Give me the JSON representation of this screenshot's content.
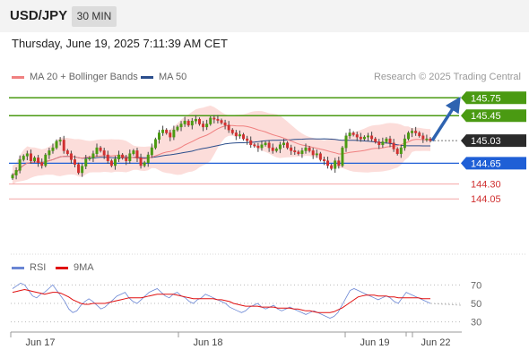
{
  "header": {
    "pair": "USD/JPY",
    "timeframe": "30 MIN",
    "datetime": "Thursday, June 19, 2025 7:11:39 AM CET"
  },
  "legend": {
    "ma20_label": "MA 20 + Bollinger Bands",
    "ma50_label": "MA 50",
    "credit": "Research © 2025 Trading Central"
  },
  "colors": {
    "ma20": "#f08080",
    "ma50": "#2b4e8c",
    "band": "#fcd9d6",
    "resistance": "#4a9a12",
    "support": "#1f5fd6",
    "minor_support": "#f4a6a6",
    "up": "#4a9a12",
    "down": "#d03030",
    "rsi": "#6a86d4",
    "rsi_ma": "#e01010",
    "arrow": "#2e63b0"
  },
  "rsi_legend": {
    "rsi_label": "RSI",
    "ma_label": "9MA"
  },
  "chart_data": [
    {
      "type": "candlestick",
      "x_labels": [
        "Jun 17",
        "Jun 18",
        "Jun 19",
        "Jun 22"
      ],
      "ylim": [
        143.15,
        145.95
      ],
      "levels": [
        {
          "value": 145.75,
          "label": "145.75",
          "kind": "resistance"
        },
        {
          "value": 145.45,
          "label": "145.45",
          "kind": "resistance"
        },
        {
          "value": 145.03,
          "label": "145.03",
          "kind": "current"
        },
        {
          "value": 144.65,
          "label": "144.65",
          "kind": "support"
        },
        {
          "value": 144.3,
          "label": "144.30",
          "kind": "minor_support"
        },
        {
          "value": 144.05,
          "label": "144.05",
          "kind": "minor_support"
        }
      ],
      "projection": {
        "from": 145.03,
        "to": 145.75
      },
      "close": [
        144.45,
        144.53,
        144.71,
        144.77,
        144.81,
        144.69,
        144.74,
        144.66,
        144.61,
        144.79,
        144.86,
        144.91,
        145.02,
        145.04,
        144.86,
        144.81,
        144.71,
        144.63,
        144.49,
        144.6,
        144.72,
        144.74,
        144.81,
        144.91,
        144.86,
        144.79,
        144.69,
        144.61,
        144.72,
        144.79,
        144.74,
        144.69,
        144.81,
        144.86,
        144.74,
        144.61,
        144.66,
        144.79,
        144.91,
        145.05,
        145.16,
        145.21,
        145.16,
        145.09,
        145.21,
        145.26,
        145.31,
        145.36,
        145.29,
        145.36,
        145.39,
        145.31,
        145.26,
        145.31,
        145.41,
        145.39,
        145.37,
        145.33,
        145.29,
        145.21,
        145.16,
        145.11,
        145.13,
        145.06,
        145.03,
        144.96,
        144.94,
        144.91,
        144.96,
        144.99,
        144.91,
        144.86,
        144.89,
        144.96,
        144.99,
        144.91,
        144.86,
        144.84,
        144.81,
        144.86,
        144.91,
        144.86,
        144.79,
        144.81,
        144.71,
        144.69,
        144.61,
        144.56,
        144.69,
        144.61,
        144.91,
        145.11,
        145.16,
        145.13,
        145.09,
        145.06,
        145.09,
        145.11,
        145.06,
        145.01,
        144.96,
        145.01,
        145.06,
        144.99,
        144.89,
        144.81,
        144.91,
        145.06,
        145.16,
        145.19,
        145.16,
        145.11,
        145.06,
        145.06,
        145.03
      ]
    },
    {
      "type": "line",
      "title": "RSI",
      "y_ticks": [
        70,
        50,
        30
      ],
      "ylim": [
        20,
        80
      ],
      "series": [
        {
          "name": "RSI",
          "values": [
            66,
            69,
            72,
            70,
            64,
            58,
            56,
            60,
            62,
            66,
            70,
            64,
            58,
            52,
            44,
            40,
            42,
            48,
            52,
            55,
            52,
            48,
            44,
            46,
            50,
            54,
            58,
            60,
            62,
            56,
            52,
            50,
            54,
            58,
            62,
            64,
            66,
            62,
            58,
            56,
            60,
            62,
            58,
            56,
            52,
            50,
            54,
            56,
            60,
            58,
            56,
            54,
            52,
            50,
            46,
            44,
            42,
            40,
            42,
            46,
            48,
            50,
            46,
            44,
            46,
            48,
            44,
            42,
            44,
            46,
            44,
            42,
            40,
            38,
            40,
            42,
            40,
            38,
            36,
            34,
            36,
            40,
            48,
            56,
            64,
            66,
            64,
            62,
            60,
            58,
            56,
            54,
            56,
            58,
            56,
            52,
            50,
            56,
            62,
            60,
            58,
            56,
            54,
            52,
            50
          ]
        },
        {
          "name": "9MA",
          "values": [
            62,
            63,
            64,
            65,
            64,
            63,
            62,
            61,
            60,
            61,
            62,
            62,
            61,
            59,
            57,
            54,
            52,
            50,
            49,
            49,
            50,
            50,
            50,
            50,
            51,
            52,
            53,
            54,
            55,
            56,
            56,
            56,
            56,
            57,
            58,
            59,
            60,
            60,
            60,
            60,
            60,
            59,
            58,
            57,
            56,
            55,
            55,
            55,
            55,
            55,
            55,
            54,
            54,
            53,
            52,
            50,
            49,
            48,
            47,
            47,
            47,
            47,
            46,
            46,
            46,
            46,
            45,
            45,
            45,
            45,
            44,
            44,
            43,
            42,
            42,
            41,
            40,
            40,
            40,
            40,
            41,
            43,
            45,
            48,
            51,
            54,
            57,
            58,
            59,
            59,
            59,
            58,
            58,
            58,
            57,
            57,
            56,
            56,
            56,
            56,
            56,
            56,
            55,
            55,
            55
          ]
        }
      ]
    }
  ]
}
